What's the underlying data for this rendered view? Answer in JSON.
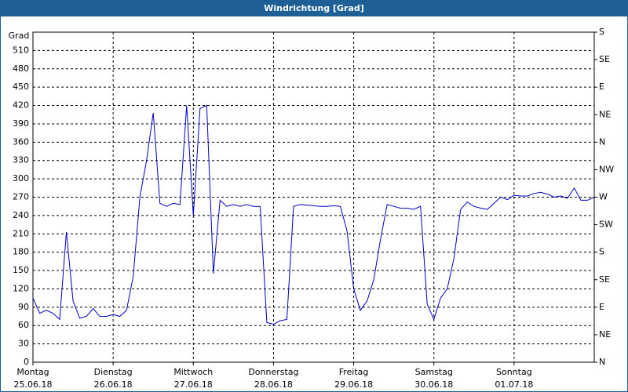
{
  "chart_data": {
    "type": "line",
    "title": "Windrichtung [Grad]",
    "ylabel": "Grad",
    "x": [
      0,
      2,
      4,
      6,
      8,
      10,
      12,
      14,
      16,
      18,
      20,
      22,
      24,
      26,
      28,
      30,
      32,
      34,
      36,
      38,
      40,
      42,
      44,
      46,
      48,
      50,
      52,
      54,
      56,
      58,
      60,
      62,
      64,
      66,
      68,
      70,
      72,
      74,
      76,
      78,
      80,
      82,
      84,
      86,
      88,
      90,
      92,
      94,
      96,
      98,
      100,
      102,
      104,
      106,
      108,
      110,
      112,
      114,
      116,
      118,
      120,
      122,
      124,
      126,
      128,
      130,
      132,
      134,
      136,
      138,
      140,
      142,
      144,
      146,
      148,
      150,
      152,
      154,
      156,
      158,
      160,
      162,
      164,
      166,
      168
    ],
    "series": [
      {
        "name": "Windrichtung",
        "color": "#0000c8",
        "values": [
          105,
          80,
          85,
          80,
          70,
          213,
          100,
          72,
          75,
          88,
          75,
          75,
          78,
          75,
          85,
          140,
          270,
          330,
          408,
          260,
          255,
          260,
          258,
          420,
          240,
          415,
          420,
          145,
          265,
          255,
          258,
          255,
          258,
          255,
          255,
          65,
          62,
          68,
          70,
          255,
          258,
          257,
          256,
          255,
          255,
          256,
          255,
          215,
          120,
          85,
          100,
          135,
          200,
          258,
          255,
          252,
          252,
          250,
          255,
          95,
          70,
          105,
          120,
          170,
          250,
          262,
          255,
          252,
          250,
          260,
          270,
          266,
          273,
          272,
          272,
          276,
          278,
          275,
          270,
          272,
          268,
          285,
          265,
          265,
          270
        ]
      }
    ],
    "xlim": [
      0,
      168
    ],
    "xticks": [
      {
        "value": 0,
        "label": "Montag"
      },
      {
        "value": 24,
        "label": "Dienstag"
      },
      {
        "value": 48,
        "label": "Mittwoch"
      },
      {
        "value": 72,
        "label": "Donnerstag"
      },
      {
        "value": 96,
        "label": "Freitag"
      },
      {
        "value": 120,
        "label": "Samstag"
      },
      {
        "value": 144,
        "label": "Sonntag"
      }
    ],
    "xtick_dates": [
      "25.06.18",
      "26.06.18",
      "27.06.18",
      "28.06.18",
      "29.06.18",
      "30.06.18",
      "01.07.18"
    ],
    "ylim": [
      0,
      540
    ],
    "yticks": [
      0,
      30,
      60,
      90,
      120,
      150,
      180,
      210,
      240,
      270,
      300,
      330,
      360,
      390,
      420,
      450,
      480,
      510
    ],
    "y2lim": [
      0,
      540
    ],
    "y2ticks": [
      {
        "value": 0,
        "label": "N"
      },
      {
        "value": 45,
        "label": "NE"
      },
      {
        "value": 90,
        "label": "E"
      },
      {
        "value": 135,
        "label": "SE"
      },
      {
        "value": 180,
        "label": "S"
      },
      {
        "value": 225,
        "label": "SW"
      },
      {
        "value": 270,
        "label": "W"
      },
      {
        "value": 315,
        "label": "NW"
      },
      {
        "value": 360,
        "label": "N"
      },
      {
        "value": 405,
        "label": "NE"
      },
      {
        "value": 450,
        "label": "E"
      },
      {
        "value": 495,
        "label": "SE"
      },
      {
        "value": 540,
        "label": "S"
      }
    ],
    "grid": true
  }
}
